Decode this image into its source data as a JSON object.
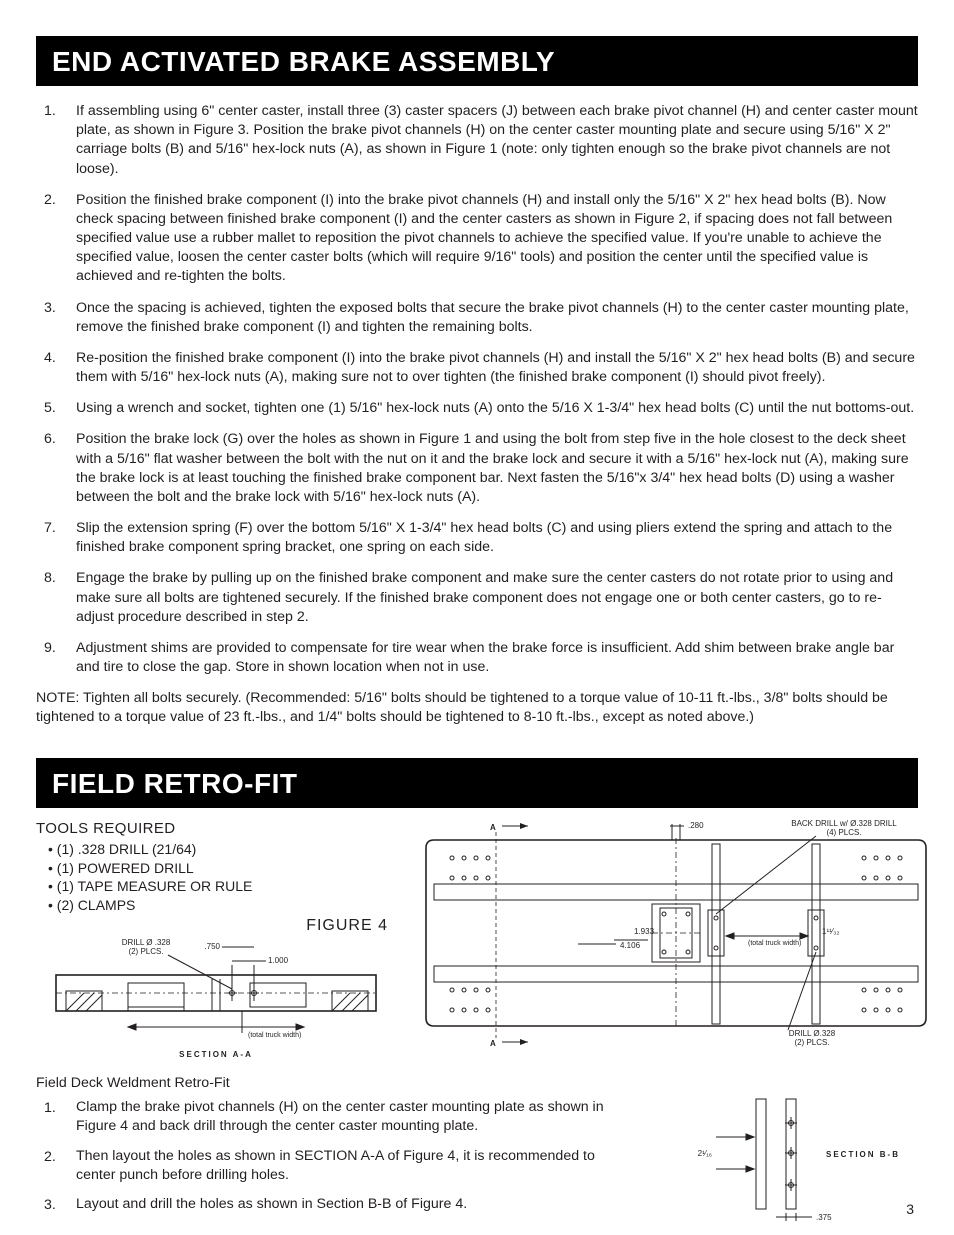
{
  "banner1": "END ACTIVATED BRAKE ASSEMBLY",
  "steps1": [
    "If assembling using 6\" center caster, install three (3) caster spacers (J) between each brake pivot channel (H) and center caster mount plate, as shown in Figure 3.  Position the brake pivot channels (H) on the center caster mounting plate and secure using 5/16\" X 2\" carriage bolts (B) and 5/16\" hex-lock nuts (A), as shown in Figure 1 (note: only tighten enough so the brake pivot channels are not loose).",
    "Position the finished brake component (I) into the brake pivot channels (H) and install only the 5/16\" X 2\" hex head bolts (B).  Now check spacing between finished brake component (I) and the center casters as shown in Figure 2, if spacing does not fall between specified value use a rubber mallet to reposition the pivot channels to achieve the specified value. If you're unable to achieve the specified value, loosen the center caster bolts (which will require 9/16\" tools) and position the center until the specified value is achieved and re-tighten the bolts.",
    "Once the spacing is achieved, tighten the exposed bolts that secure the brake pivot channels (H) to the center caster mounting plate, remove the finished brake component (I) and tighten the remaining bolts.",
    "Re-position the finished brake component (I) into the brake pivot channels (H) and install the 5/16\" X 2\" hex head bolts (B) and secure them with 5/16\" hex-lock nuts (A), making sure not to over tighten (the finished brake component (I) should pivot freely).",
    "Using a wrench and socket, tighten one (1) 5/16\" hex-lock nuts (A) onto the 5/16 X 1-3/4\" hex head bolts (C) until the nut bottoms-out.",
    "Position the brake lock (G) over the holes as shown in Figure 1 and using the bolt from step five in the hole closest to the deck sheet with a 5/16\" flat washer between the bolt with the nut on it and the brake lock and secure it with a 5/16\" hex-lock nut (A), making sure the brake lock is at least touching the finished brake component bar.  Next fasten the 5/16\"x 3/4\" hex head bolts (D) using a washer between the bolt and the brake lock with 5/16\" hex-lock nuts (A).",
    "Slip the extension spring (F) over the bottom 5/16\" X 1-3/4\" hex head bolts (C) and using pliers extend the spring and attach to the finished brake component spring bracket, one spring on each side.",
    "Engage the brake by pulling up on the finished brake component and make sure the center casters do not rotate prior to using and make sure all bolts are tightened securely.  If the finished brake component does not engage one or both center casters, go to re-adjust procedure described in step 2.",
    "Adjustment shims are provided to compensate for tire wear when the brake force is insufficient. Add shim between brake angle bar and tire to close the gap. Store in shown location when not in use."
  ],
  "note": "NOTE: Tighten all bolts securely. (Recommended: 5/16\" bolts should be tightened to a torque value of 10-11 ft.-lbs., 3/8\" bolts should be tightened to a torque value of 23 ft.-lbs., and 1/4\" bolts should be tightened to 8-10 ft.-lbs., except as noted above.)",
  "banner2": "FIELD RETRO-FIT",
  "tools_head": "TOOLS REQUIRED",
  "tools": [
    "• (1) .328 DRILL (21/64)",
    "• (1) POWERED DRILL",
    "• (1) TAPE MEASURE OR RULE",
    "• (2) CLAMPS"
  ],
  "figure4_label": "FIGURE 4",
  "sectionAA_label": "SECTION A-A",
  "sectionBB_label": "SECTION B-B",
  "drill_label_a": "DRILL Ø .328\n(2) PLCS.",
  "drill_label_b": "DRILL Ø.328\n(2) PLCS.",
  "back_drill_label": "BACK DRILL w/ Ø.328 DRILL\n(4) PLCS.",
  "dims": {
    "d_750": ".750",
    "d_1000": "1.000",
    "d_280": ".280",
    "d_1933": "1.933",
    "d_4106": "4.106",
    "d_11_32": "1¹¹⁄₃₂",
    "d_2_1_16": "2¹⁄₁₆",
    "d_375": ".375",
    "total_truck_width": "(total truck width)"
  },
  "a_marker": "A",
  "subhead": "Field Deck Weldment Retro-Fit",
  "steps2": [
    "Clamp the brake pivot channels (H) on the center caster mounting plate as shown in Figure 4 and back drill through the center caster mounting plate.",
    "Then layout the holes as shown in SECTION A-A of Figure 4, it is recommended to center punch before drilling holes.",
    "Layout and drill the holes as shown in Section B-B of Figure 4."
  ],
  "page_number": "3",
  "colors": {
    "text": "#231f20",
    "bg": "#ffffff",
    "banner": "#000000"
  }
}
